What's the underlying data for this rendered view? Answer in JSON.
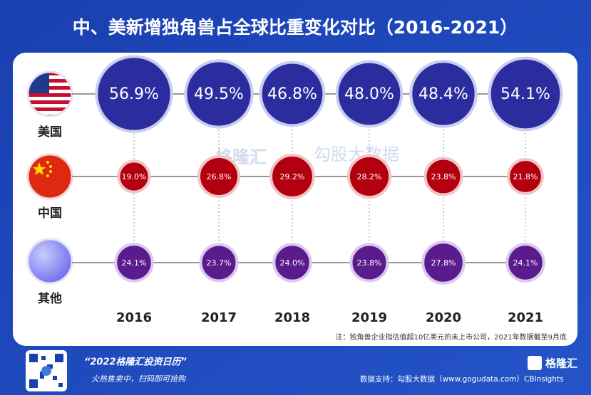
{
  "chart_data": {
    "type": "bubble",
    "title": "中、美新增独角兽占全球比重变化对比（2016-2021）",
    "categories": [
      "2016",
      "2017",
      "2018",
      "2019",
      "2020",
      "2021"
    ],
    "series": [
      {
        "name": "美国",
        "color": "#2b2d9e",
        "values": [
          56.9,
          49.5,
          46.8,
          48.0,
          48.4,
          54.1
        ],
        "value_labels": [
          "56.9%",
          "49.5%",
          "46.8%",
          "48.0%",
          "48.4%",
          "54.1%"
        ]
      },
      {
        "name": "中国",
        "color": "#b3000f",
        "values": [
          19.0,
          26.8,
          29.2,
          28.2,
          23.8,
          21.8
        ],
        "value_labels": [
          "19.0%",
          "26.8%",
          "29.2%",
          "28.2%",
          "23.8%",
          "21.8%"
        ]
      },
      {
        "name": "其他",
        "color": "#5a1b8c",
        "values": [
          24.1,
          23.7,
          24.0,
          23.8,
          27.8,
          24.1
        ],
        "value_labels": [
          "24.1%",
          "23.7%",
          "24.0%",
          "23.8%",
          "27.8%",
          "24.1%"
        ]
      }
    ],
    "note": "注：独角兽企业指估值超10亿美元的未上市公司，2021年数据截至9月底"
  },
  "watermark": {
    "brand": "格隆汇",
    "partner": "勾股大数据"
  },
  "footer": {
    "headline": "“2022格隆汇投资日历”",
    "tagline": "火热售卖中，扫码即可抢购",
    "source": "数据支持：勾股大数据（www.gogudata.com）CBInsights",
    "logo": "格隆汇"
  }
}
